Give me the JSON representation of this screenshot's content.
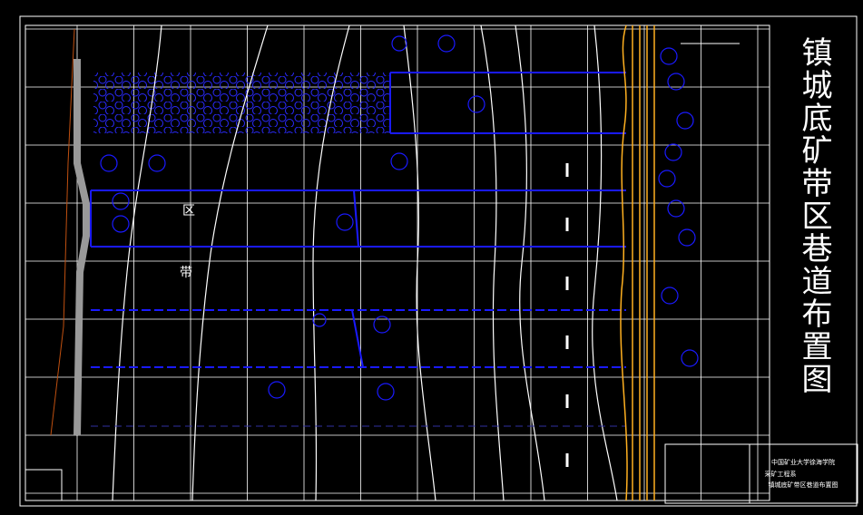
{
  "title": "镇城底矿带区巷道布置图",
  "labels": {
    "district": "区",
    "panel": "带"
  },
  "title_block": {
    "school": "中国矿业大学徐海学院",
    "department": "采矿工程系",
    "drawing": "镇城底矿带区巷道布置图"
  }
}
